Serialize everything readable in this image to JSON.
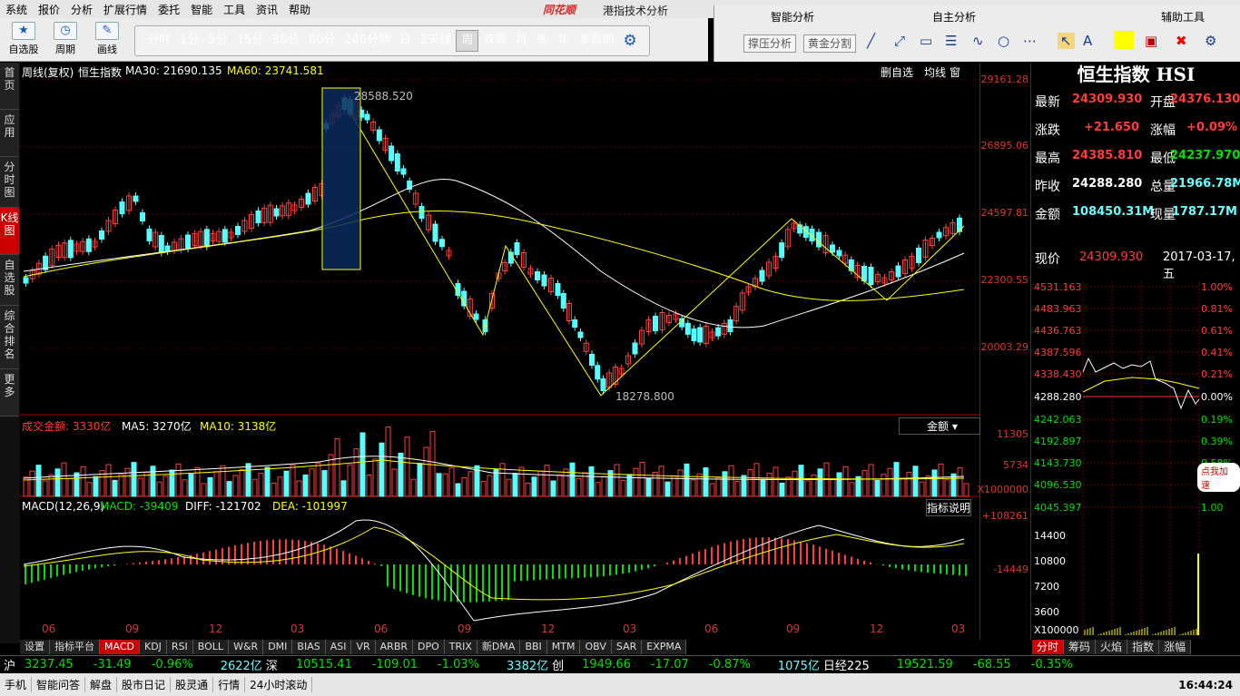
{
  "menu": [
    "系统",
    "报价",
    "分析",
    "扩展行情",
    "委托",
    "智能",
    "工具",
    "资讯",
    "帮助"
  ],
  "brand": "同花顺",
  "app_title": "港指技术分析",
  "toolbar_icons": [
    {
      "label": "自选股",
      "icon": "star-icon"
    },
    {
      "label": "周期",
      "icon": "clock-icon"
    },
    {
      "label": "画线",
      "icon": "pen-icon"
    }
  ],
  "periods": [
    "分时",
    "1分",
    "5分",
    "15分",
    "30分",
    "60分",
    "240分钟",
    "日",
    "2天线",
    "周",
    "双周",
    "月",
    "季",
    "年",
    "多周期"
  ],
  "selected_period": "周",
  "right_panel": {
    "h1": "智能分析",
    "h2": "自主分析",
    "h3": "辅助工具",
    "b1": "撑压分析",
    "b2": "黄金分割"
  },
  "side_tabs": [
    "首页",
    "应用",
    "分时图",
    "K线图",
    "自选股",
    "综合排名",
    "更多"
  ],
  "chart": {
    "header_prefix": "周线(复权)",
    "index_name": "恒生指数",
    "ma30": "MA30: 21690.135",
    "ma60": "MA60: 23741.581",
    "btn1": "删自选",
    "btn2": "均线",
    "btn3": "窗",
    "high_label": "28588.520",
    "low_label": "18278.800"
  },
  "yaxis": [
    "29161.28",
    "26895.06",
    "24597.81",
    "22300.55",
    "20003.29"
  ],
  "volume": {
    "title": "成交金额: 3330亿",
    "ma5": "MA5: 3270亿",
    "ma10": "MA10: 3138亿",
    "dropdown": "金额",
    "ticks": [
      "11305",
      "5734",
      "X1000000"
    ]
  },
  "macd": {
    "title": "MACD(12,26,9)",
    "macd": "MACD: -39409",
    "diff": "DIFF: -121702",
    "dea": "DEA: -101997",
    "explain": "指标说明",
    "ticks": [
      "+108261",
      "-14449"
    ]
  },
  "xlabels": [
    "06",
    "09",
    "12",
    "03",
    "06",
    "09",
    "12",
    "03",
    "06",
    "09",
    "12",
    "03"
  ],
  "quote": {
    "title": "恒生指数 HSI",
    "rows": [
      [
        "最新",
        "24309.930",
        "开盘",
        "24376.130"
      ],
      [
        "涨跌",
        "+21.650",
        "涨幅",
        "+0.09%"
      ],
      [
        "最高",
        "24385.810",
        "最低",
        "24237.970"
      ],
      [
        "昨收",
        "24288.280",
        "总量",
        "21966.78M"
      ],
      [
        "金额",
        "108450.31M",
        "现量",
        "1787.17M"
      ]
    ],
    "now_label": "现价",
    "now_value": "24309.930",
    "date": "2017-03-17,五"
  },
  "intraday_left": [
    "4531.163",
    "4483.963",
    "4436.763",
    "4387.596",
    "4338.430",
    "4288.280",
    "4242.063",
    "4192.897",
    "4143.730",
    "4096.530",
    "4045.397",
    "14400",
    "10800",
    "7200",
    "3600",
    "X100000"
  ],
  "intraday_right": [
    "1.00%",
    "0.81%",
    "0.61%",
    "0.41%",
    "0.21%",
    "0.00%",
    "0.19%",
    "0.39%",
    "0.58%",
    "0.79%",
    "1.00"
  ],
  "promo": "点我加速",
  "bottom_tabs": [
    "设置",
    "指标平台",
    "MACD",
    "KDJ",
    "RSI",
    "BOLL",
    "W&R",
    "DMI",
    "BIAS",
    "ASI",
    "VR",
    "ARBR",
    "DPO",
    "TRIX",
    "新DMA",
    "BBI",
    "MTM",
    "OBV",
    "SAR",
    "EXPMA"
  ],
  "bottom_selected": "MACD",
  "right_tabs": [
    "分时",
    "筹码",
    "火焰",
    "指数",
    "涨幅"
  ],
  "index_bar": [
    {
      "t": "沪",
      "c": "white"
    },
    {
      "t": "3237.45",
      "c": "green"
    },
    {
      "t": "-31.49",
      "c": "green"
    },
    {
      "t": "-0.96%",
      "c": "green"
    },
    {
      "t": "2622亿",
      "c": "cyan"
    },
    {
      "t": "深",
      "c": "white"
    },
    {
      "t": "10515.41",
      "c": "green"
    },
    {
      "t": "-109.01",
      "c": "green"
    },
    {
      "t": "-1.03%",
      "c": "green"
    },
    {
      "t": "3382亿",
      "c": "cyan"
    },
    {
      "t": "创",
      "c": "white"
    },
    {
      "t": "1949.66",
      "c": "green"
    },
    {
      "t": "-17.07",
      "c": "green"
    },
    {
      "t": "-0.87%",
      "c": "green"
    },
    {
      "t": "1075亿",
      "c": "cyan"
    },
    {
      "t": "日经225",
      "c": "white"
    },
    {
      "t": "19521.59",
      "c": "green"
    },
    {
      "t": "-68.55",
      "c": "green"
    },
    {
      "t": "-0.35%",
      "c": "green"
    }
  ],
  "status": [
    "手机",
    "智能问答",
    "解盘",
    "股市日记",
    "股灵通",
    "行情",
    "24小时滚动"
  ],
  "clock": "16:44:24"
}
